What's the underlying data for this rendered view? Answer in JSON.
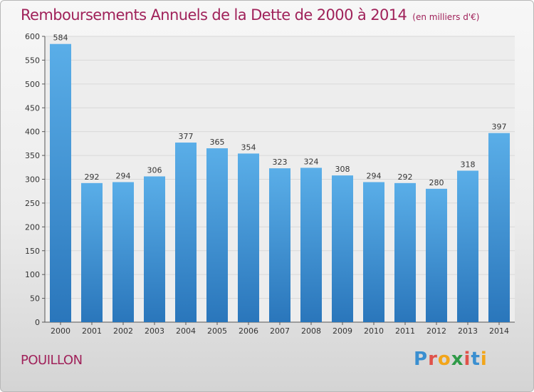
{
  "chart_data": {
    "type": "bar",
    "title": "Remboursements Annuels de la Dette de 2000 à 2014",
    "unit_note": "(en milliers d'€)",
    "categories": [
      "2000",
      "2001",
      "2002",
      "2003",
      "2004",
      "2005",
      "2006",
      "2007",
      "2008",
      "2009",
      "2010",
      "2011",
      "2012",
      "2013",
      "2014"
    ],
    "values": [
      584,
      292,
      294,
      306,
      377,
      365,
      354,
      323,
      324,
      308,
      294,
      292,
      280,
      318,
      397
    ],
    "ylim": [
      0,
      600
    ],
    "yticks": [
      0,
      50,
      100,
      150,
      200,
      250,
      300,
      350,
      400,
      450,
      500,
      550,
      600
    ],
    "grid": true,
    "bar_color_top": "#5aaee8",
    "bar_color_bottom": "#2a76bb"
  },
  "commune": "POUILLON",
  "logo": {
    "letters": [
      "P",
      "r",
      "o",
      "x",
      "i",
      "t",
      "i"
    ],
    "colors": [
      "#3a8fd0",
      "#e0524a",
      "#f2a51a",
      "#2f9a48",
      "#e0524a",
      "#3a8fd0",
      "#f2a51a"
    ]
  },
  "colors": {
    "title": "#a0225a",
    "grid": "#d8d8d8",
    "axis": "#555555"
  }
}
